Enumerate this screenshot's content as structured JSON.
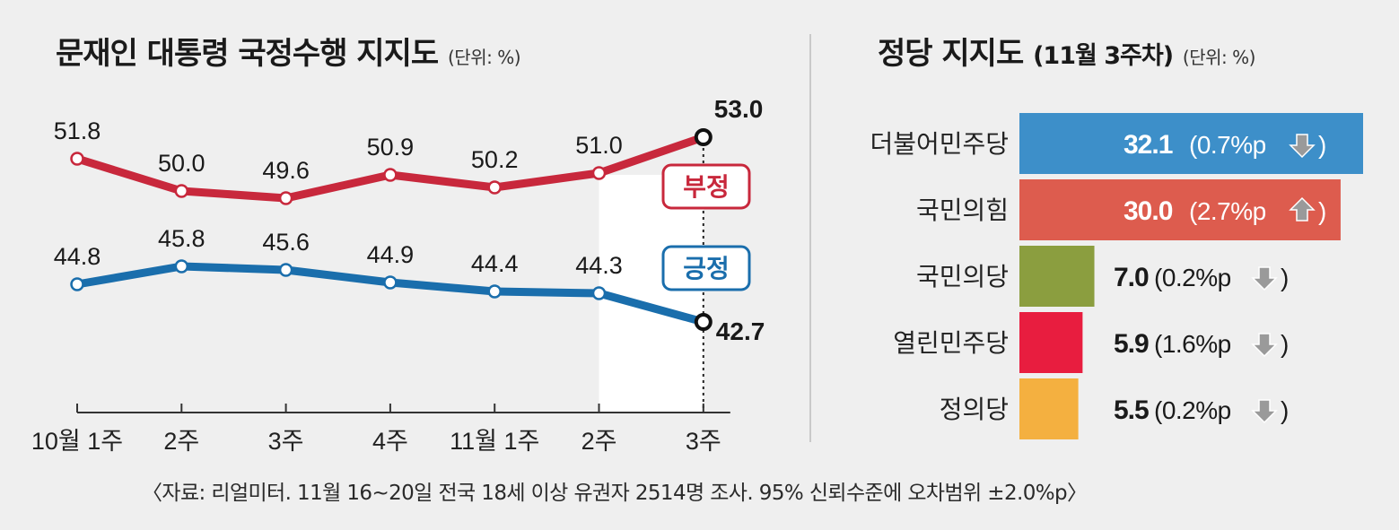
{
  "left_title": {
    "main": "문재인 대통령 국정수행 지지도",
    "unit": "(단위: %)"
  },
  "right_title": {
    "main": "정당 지지도",
    "period": "(11월 3주차)",
    "unit": "(단위: %)"
  },
  "source": "〈자료: 리얼미터. 11월 16~20일 전국 18세 이상 유권자 2514명 조사. 95% 신뢰수준에 오차범위 ±2.0%p〉",
  "chart_data": [
    {
      "type": "line",
      "categories": [
        "10월 1주",
        "2주",
        "3주",
        "4주",
        "11월 1주",
        "2주",
        "3주"
      ],
      "ylim": [
        40,
        55
      ],
      "highlight_category_index": 6,
      "series": [
        {
          "name": "부정",
          "values": [
            51.8,
            50.0,
            49.6,
            50.9,
            50.2,
            51.0,
            53.0
          ],
          "color": "#c8283c"
        },
        {
          "name": "긍정",
          "values": [
            44.8,
            45.8,
            45.6,
            44.9,
            44.4,
            44.3,
            42.7
          ],
          "color": "#1a6eac"
        }
      ],
      "labels": [
        [
          "51.8",
          "50.0",
          "49.6",
          "50.9",
          "50.2",
          "51.0",
          "53.0"
        ],
        [
          "44.8",
          "45.8",
          "45.6",
          "44.9",
          "44.4",
          "44.3",
          "42.7"
        ]
      ]
    },
    {
      "type": "bar",
      "orientation": "horizontal",
      "xlim": [
        0,
        32.1
      ],
      "categories": [
        "더불어민주당",
        "국민의힘",
        "국민의당",
        "열린민주당",
        "정의당"
      ],
      "values": [
        32.1,
        30.0,
        7.0,
        5.9,
        5.5
      ],
      "value_labels": [
        "32.1",
        "30.0",
        "7.0",
        "5.9",
        "5.5"
      ],
      "changes": [
        "0.7%p",
        "2.7%p",
        "0.2%p",
        "1.6%p",
        "0.2%p"
      ],
      "change_directions": [
        "down",
        "up",
        "down",
        "down",
        "down"
      ],
      "colors": [
        "#3d8fc9",
        "#dd5c4e",
        "#8b9e3f",
        "#e81d3f",
        "#f4b040"
      ]
    }
  ]
}
